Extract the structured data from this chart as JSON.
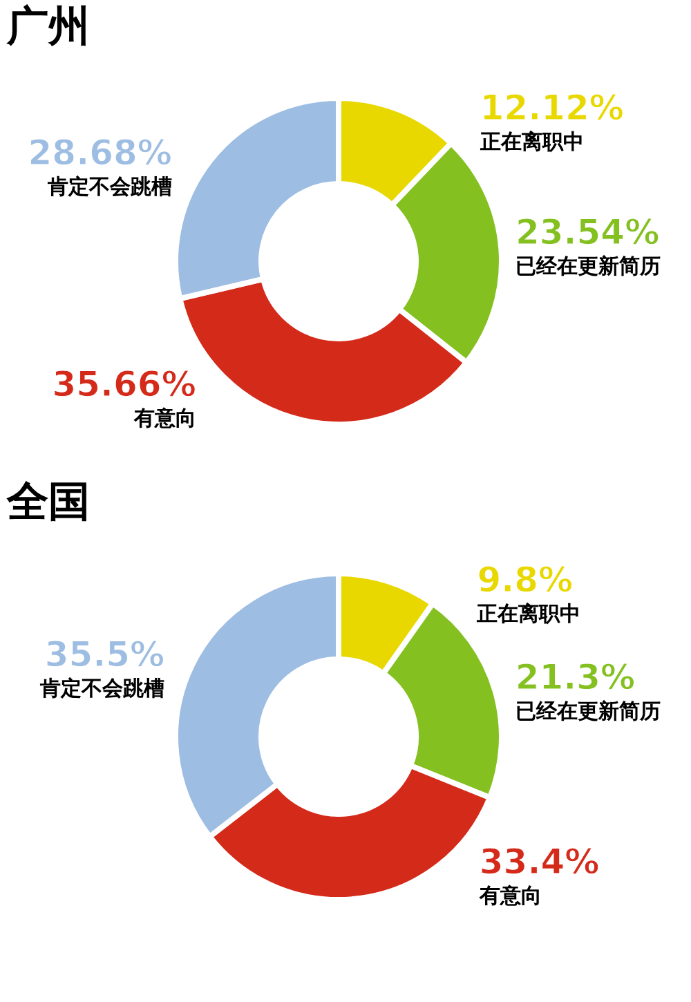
{
  "chart_data": [
    {
      "type": "donut",
      "title": "广州",
      "categories": [
        "正在离职中",
        "已经在更新简历",
        "有意向",
        "肯定不会跳槽"
      ],
      "values": [
        12.12,
        23.54,
        35.66,
        28.68
      ],
      "value_labels": [
        "12.12%",
        "23.54%",
        "35.66%",
        "28.68%"
      ],
      "colors": [
        "#e8d800",
        "#84c020",
        "#d42a1a",
        "#9dbde2"
      ],
      "legend": false
    },
    {
      "type": "donut",
      "title": "全国",
      "categories": [
        "正在离职中",
        "已经在更新简历",
        "有意向",
        "肯定不会跳槽"
      ],
      "values": [
        9.8,
        21.3,
        33.4,
        35.5
      ],
      "value_labels": [
        "9.8%",
        "21.3%",
        "33.4%",
        "35.5%"
      ],
      "colors": [
        "#e8d800",
        "#84c020",
        "#d42a1a",
        "#9dbde2"
      ],
      "legend": false
    }
  ]
}
